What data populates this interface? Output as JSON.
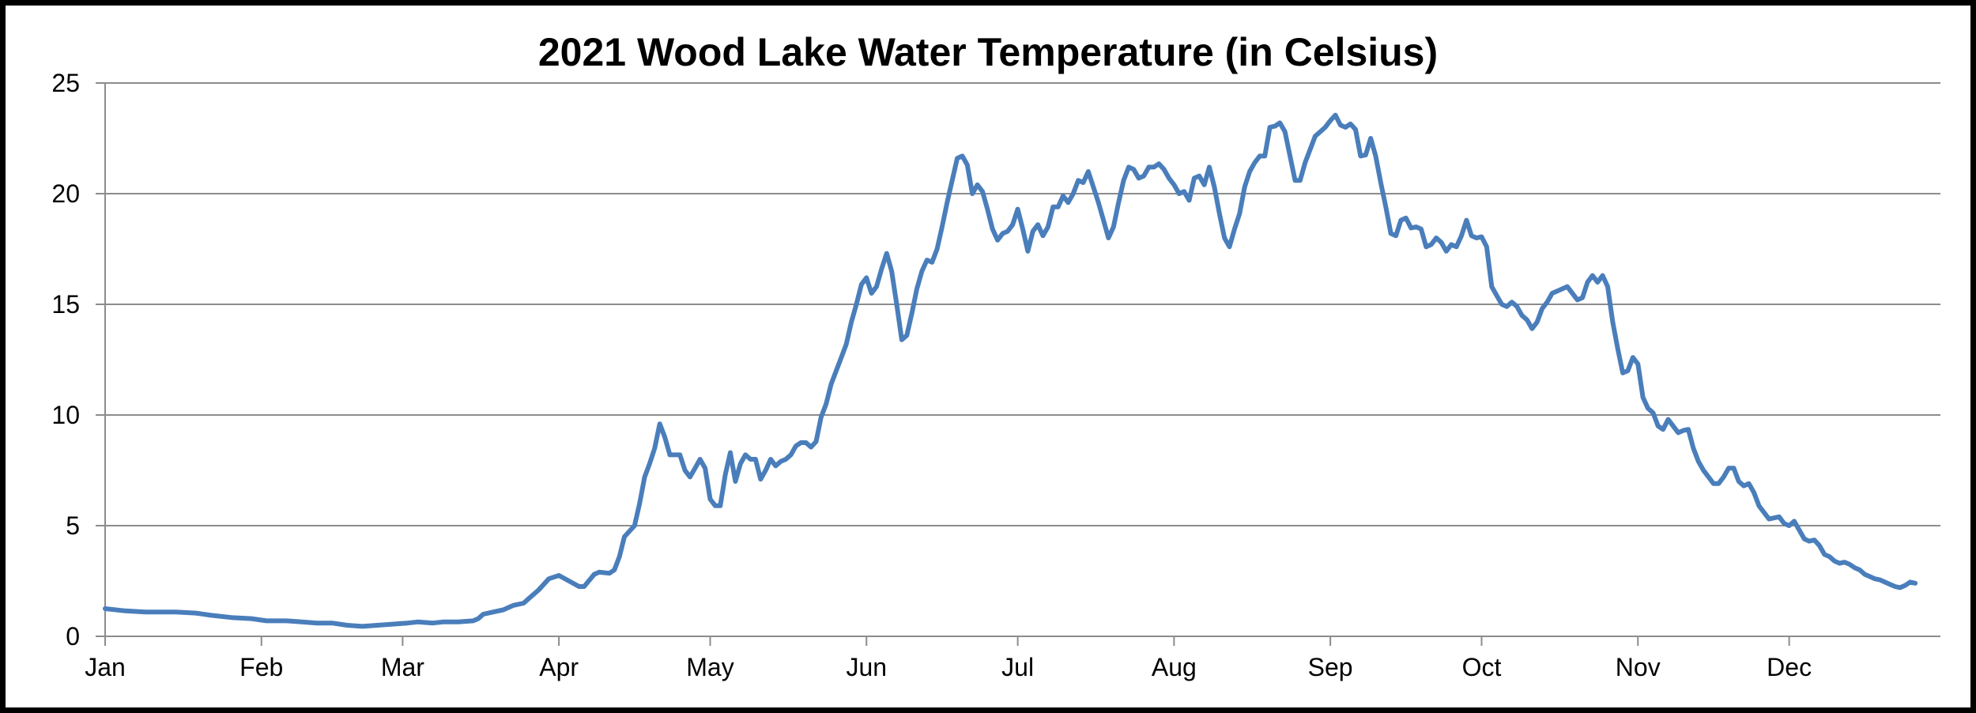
{
  "chart_data": {
    "type": "line",
    "title": "2021 Wood Lake Water Temperature (in Celsius)",
    "xlabel": "",
    "ylabel": "",
    "ylim": [
      0,
      25
    ],
    "xlim": [
      1,
      365
    ],
    "grid": true,
    "legend": "none",
    "y_ticks": [
      "0",
      "5",
      "10",
      "15",
      "20",
      "25"
    ],
    "x_ticks": [
      {
        "label": "Jan",
        "day": 1
      },
      {
        "label": "Feb",
        "day": 32
      },
      {
        "label": "Mar",
        "day": 60
      },
      {
        "label": "Apr",
        "day": 91
      },
      {
        "label": "May",
        "day": 121
      },
      {
        "label": "Jun",
        "day": 152
      },
      {
        "label": "Jul",
        "day": 182
      },
      {
        "label": "Aug",
        "day": 213
      },
      {
        "label": "Sep",
        "day": 244
      },
      {
        "label": "Oct",
        "day": 274
      },
      {
        "label": "Nov",
        "day": 305
      },
      {
        "label": "Dec",
        "day": 335
      }
    ],
    "series": [
      {
        "name": "Water Temperature",
        "color": "#4A7EBB",
        "points": [
          [
            1,
            1.25
          ],
          [
            5,
            1.15
          ],
          [
            9,
            1.1
          ],
          [
            12,
            1.1
          ],
          [
            15,
            1.1
          ],
          [
            19,
            1.05
          ],
          [
            22,
            0.95
          ],
          [
            26,
            0.85
          ],
          [
            30,
            0.8
          ],
          [
            33,
            0.7
          ],
          [
            37,
            0.7
          ],
          [
            40,
            0.65
          ],
          [
            43,
            0.6
          ],
          [
            46,
            0.6
          ],
          [
            49,
            0.5
          ],
          [
            52,
            0.45
          ],
          [
            55,
            0.5
          ],
          [
            58,
            0.55
          ],
          [
            61,
            0.6
          ],
          [
            63,
            0.65
          ],
          [
            66,
            0.6
          ],
          [
            68,
            0.65
          ],
          [
            71,
            0.65
          ],
          [
            74,
            0.7
          ],
          [
            75,
            0.8
          ],
          [
            76,
            1.0
          ],
          [
            78,
            1.1
          ],
          [
            80,
            1.2
          ],
          [
            82,
            1.4
          ],
          [
            84,
            1.5
          ],
          [
            85,
            1.7
          ],
          [
            87,
            2.1
          ],
          [
            89,
            2.6
          ],
          [
            91,
            2.75
          ],
          [
            93,
            2.5
          ],
          [
            95,
            2.25
          ],
          [
            96,
            2.25
          ],
          [
            98,
            2.8
          ],
          [
            99,
            2.9
          ],
          [
            101,
            2.85
          ],
          [
            102,
            3.0
          ],
          [
            103,
            3.6
          ],
          [
            104,
            4.5
          ],
          [
            106,
            5.0
          ],
          [
            107,
            6.0
          ],
          [
            108,
            7.2
          ],
          [
            109,
            7.8
          ],
          [
            110,
            8.5
          ],
          [
            111,
            9.6
          ],
          [
            112,
            9.0
          ],
          [
            113,
            8.2
          ],
          [
            115,
            8.2
          ],
          [
            116,
            7.5
          ],
          [
            117,
            7.2
          ],
          [
            118,
            7.6
          ],
          [
            119,
            8.0
          ],
          [
            120,
            7.6
          ],
          [
            121,
            6.2
          ],
          [
            122,
            5.9
          ],
          [
            123,
            5.9
          ],
          [
            124,
            7.3
          ],
          [
            125,
            8.3
          ],
          [
            126,
            7.0
          ],
          [
            127,
            7.8
          ],
          [
            128,
            8.2
          ],
          [
            129,
            8.0
          ],
          [
            130,
            8.0
          ],
          [
            131,
            7.1
          ],
          [
            132,
            7.5
          ],
          [
            133,
            8.0
          ],
          [
            134,
            7.7
          ],
          [
            135,
            7.9
          ],
          [
            136,
            8.0
          ],
          [
            137,
            8.2
          ],
          [
            138,
            8.6
          ],
          [
            139,
            8.75
          ],
          [
            140,
            8.75
          ],
          [
            141,
            8.55
          ],
          [
            142,
            8.8
          ],
          [
            143,
            9.9
          ],
          [
            144,
            10.5
          ],
          [
            145,
            11.4
          ],
          [
            146,
            12.0
          ],
          [
            147,
            12.6
          ],
          [
            148,
            13.2
          ],
          [
            149,
            14.2
          ],
          [
            150,
            15.0
          ],
          [
            151,
            15.9
          ],
          [
            152,
            16.2
          ],
          [
            153,
            15.5
          ],
          [
            154,
            15.8
          ],
          [
            155,
            16.6
          ],
          [
            156,
            17.3
          ],
          [
            157,
            16.5
          ],
          [
            158,
            15.0
          ],
          [
            159,
            13.4
          ],
          [
            160,
            13.6
          ],
          [
            161,
            14.6
          ],
          [
            162,
            15.7
          ],
          [
            163,
            16.5
          ],
          [
            164,
            17.0
          ],
          [
            165,
            16.9
          ],
          [
            166,
            17.5
          ],
          [
            167,
            18.5
          ],
          [
            168,
            19.6
          ],
          [
            169,
            20.6
          ],
          [
            170,
            21.6
          ],
          [
            171,
            21.7
          ],
          [
            172,
            21.3
          ],
          [
            173,
            20.0
          ],
          [
            174,
            20.4
          ],
          [
            175,
            20.1
          ],
          [
            176,
            19.3
          ],
          [
            177,
            18.4
          ],
          [
            178,
            17.9
          ],
          [
            179,
            18.2
          ],
          [
            180,
            18.3
          ],
          [
            181,
            18.6
          ],
          [
            182,
            19.3
          ],
          [
            183,
            18.4
          ],
          [
            184,
            17.4
          ],
          [
            185,
            18.3
          ],
          [
            186,
            18.6
          ],
          [
            187,
            18.1
          ],
          [
            188,
            18.5
          ],
          [
            189,
            19.4
          ],
          [
            190,
            19.4
          ],
          [
            191,
            19.9
          ],
          [
            192,
            19.6
          ],
          [
            193,
            20.0
          ],
          [
            194,
            20.6
          ],
          [
            195,
            20.5
          ],
          [
            196,
            21.0
          ],
          [
            197,
            20.3
          ],
          [
            198,
            19.6
          ],
          [
            199,
            18.8
          ],
          [
            200,
            18.0
          ],
          [
            201,
            18.5
          ],
          [
            202,
            19.6
          ],
          [
            203,
            20.6
          ],
          [
            204,
            21.2
          ],
          [
            205,
            21.1
          ],
          [
            206,
            20.7
          ],
          [
            207,
            20.8
          ],
          [
            208,
            21.2
          ],
          [
            209,
            21.2
          ],
          [
            210,
            21.35
          ],
          [
            211,
            21.1
          ],
          [
            212,
            20.7
          ],
          [
            213,
            20.4
          ],
          [
            214,
            20.0
          ],
          [
            215,
            20.1
          ],
          [
            216,
            19.7
          ],
          [
            217,
            20.7
          ],
          [
            218,
            20.8
          ],
          [
            219,
            20.4
          ],
          [
            220,
            21.2
          ],
          [
            221,
            20.3
          ],
          [
            222,
            19.1
          ],
          [
            223,
            18.0
          ],
          [
            224,
            17.6
          ],
          [
            225,
            18.4
          ],
          [
            226,
            19.1
          ],
          [
            227,
            20.3
          ],
          [
            228,
            21.0
          ],
          [
            229,
            21.4
          ],
          [
            230,
            21.7
          ],
          [
            231,
            21.7
          ],
          [
            232,
            23.0
          ],
          [
            233,
            23.05
          ],
          [
            234,
            23.2
          ],
          [
            235,
            22.8
          ],
          [
            236,
            21.7
          ],
          [
            237,
            20.6
          ],
          [
            238,
            20.6
          ],
          [
            239,
            21.4
          ],
          [
            240,
            22.0
          ],
          [
            241,
            22.6
          ],
          [
            242,
            22.8
          ],
          [
            243,
            23.0
          ],
          [
            244,
            23.3
          ],
          [
            245,
            23.55
          ],
          [
            246,
            23.1
          ],
          [
            247,
            23.0
          ],
          [
            248,
            23.15
          ],
          [
            249,
            22.9
          ],
          [
            250,
            21.7
          ],
          [
            251,
            21.75
          ],
          [
            252,
            22.5
          ],
          [
            253,
            21.7
          ],
          [
            254,
            20.5
          ],
          [
            255,
            19.4
          ],
          [
            256,
            18.2
          ],
          [
            257,
            18.1
          ],
          [
            258,
            18.8
          ],
          [
            259,
            18.9
          ],
          [
            260,
            18.45
          ],
          [
            261,
            18.5
          ],
          [
            262,
            18.4
          ],
          [
            263,
            17.6
          ],
          [
            264,
            17.7
          ],
          [
            265,
            18.0
          ],
          [
            266,
            17.8
          ],
          [
            267,
            17.4
          ],
          [
            268,
            17.7
          ],
          [
            269,
            17.6
          ],
          [
            270,
            18.1
          ],
          [
            271,
            18.8
          ],
          [
            272,
            18.1
          ],
          [
            273,
            18.0
          ],
          [
            274,
            18.05
          ],
          [
            275,
            17.6
          ],
          [
            276,
            15.8
          ],
          [
            277,
            15.4
          ],
          [
            278,
            15.0
          ],
          [
            279,
            14.9
          ],
          [
            280,
            15.1
          ],
          [
            281,
            14.9
          ],
          [
            282,
            14.5
          ],
          [
            283,
            14.3
          ],
          [
            284,
            13.9
          ],
          [
            285,
            14.2
          ],
          [
            286,
            14.8
          ],
          [
            287,
            15.1
          ],
          [
            288,
            15.5
          ],
          [
            289,
            15.6
          ],
          [
            290,
            15.7
          ],
          [
            291,
            15.8
          ],
          [
            292,
            15.5
          ],
          [
            293,
            15.2
          ],
          [
            294,
            15.3
          ],
          [
            295,
            16.0
          ],
          [
            296,
            16.3
          ],
          [
            297,
            16.0
          ],
          [
            298,
            16.3
          ],
          [
            299,
            15.8
          ],
          [
            300,
            14.2
          ],
          [
            301,
            13.0
          ],
          [
            302,
            11.9
          ],
          [
            303,
            12.0
          ],
          [
            304,
            12.6
          ],
          [
            305,
            12.3
          ],
          [
            306,
            10.8
          ],
          [
            307,
            10.3
          ],
          [
            308,
            10.1
          ],
          [
            309,
            9.5
          ],
          [
            310,
            9.35
          ],
          [
            311,
            9.8
          ],
          [
            312,
            9.5
          ],
          [
            313,
            9.2
          ],
          [
            314,
            9.3
          ],
          [
            315,
            9.35
          ],
          [
            316,
            8.5
          ],
          [
            317,
            7.9
          ],
          [
            318,
            7.5
          ],
          [
            319,
            7.2
          ],
          [
            320,
            6.9
          ],
          [
            321,
            6.9
          ],
          [
            322,
            7.2
          ],
          [
            323,
            7.6
          ],
          [
            324,
            7.6
          ],
          [
            325,
            7.0
          ],
          [
            326,
            6.8
          ],
          [
            327,
            6.9
          ],
          [
            328,
            6.5
          ],
          [
            329,
            5.9
          ],
          [
            330,
            5.6
          ],
          [
            331,
            5.3
          ],
          [
            332,
            5.35
          ],
          [
            333,
            5.4
          ],
          [
            334,
            5.1
          ],
          [
            335,
            5.0
          ],
          [
            336,
            5.2
          ],
          [
            337,
            4.8
          ],
          [
            338,
            4.4
          ],
          [
            339,
            4.3
          ],
          [
            340,
            4.35
          ],
          [
            341,
            4.1
          ],
          [
            342,
            3.7
          ],
          [
            343,
            3.6
          ],
          [
            344,
            3.4
          ],
          [
            345,
            3.3
          ],
          [
            346,
            3.35
          ],
          [
            347,
            3.25
          ],
          [
            348,
            3.1
          ],
          [
            349,
            3.0
          ],
          [
            350,
            2.8
          ],
          [
            351,
            2.7
          ],
          [
            352,
            2.6
          ],
          [
            353,
            2.55
          ],
          [
            354,
            2.45
          ],
          [
            355,
            2.35
          ],
          [
            356,
            2.25
          ],
          [
            357,
            2.2
          ],
          [
            358,
            2.3
          ],
          [
            359,
            2.45
          ],
          [
            360,
            2.4
          ]
        ]
      }
    ]
  }
}
